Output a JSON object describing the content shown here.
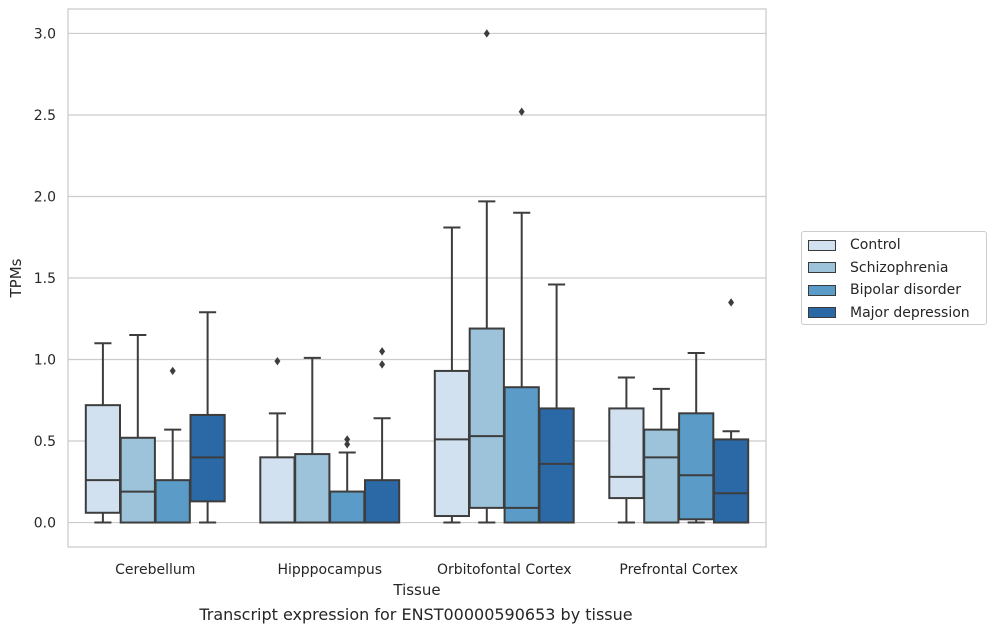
{
  "chart_data": {
    "type": "box",
    "title": "Transcript expression for ENST00000590653 by tissue",
    "xlabel": "Tissue",
    "ylabel": "TPMs",
    "ylim": [
      -0.15,
      3.15
    ],
    "yticks": [
      "0.0",
      "0.5",
      "1.0",
      "1.5",
      "2.0",
      "2.5",
      "3.0"
    ],
    "grid": true,
    "legend_position": "right",
    "categories": [
      "Cerebellum",
      "Hipppocampus",
      "Orbitofontal Cortex",
      "Prefrontal Cortex"
    ],
    "series": [
      {
        "name": "Control",
        "color": "#d1e1f0",
        "boxes": [
          {
            "whislo": 0.0,
            "q1": 0.06,
            "med": 0.26,
            "q3": 0.72,
            "whishi": 1.1,
            "fliers": []
          },
          {
            "whislo": 0.0,
            "q1": 0.0,
            "med": 0.0,
            "q3": 0.4,
            "whishi": 0.67,
            "fliers": [
              0.99
            ]
          },
          {
            "whislo": 0.0,
            "q1": 0.04,
            "med": 0.51,
            "q3": 0.93,
            "whishi": 1.81,
            "fliers": []
          },
          {
            "whislo": 0.0,
            "q1": 0.15,
            "med": 0.28,
            "q3": 0.7,
            "whishi": 0.89,
            "fliers": []
          }
        ]
      },
      {
        "name": "Schizophrenia",
        "color": "#9cc3da",
        "boxes": [
          {
            "whislo": 0.0,
            "q1": 0.0,
            "med": 0.19,
            "q3": 0.52,
            "whishi": 1.15,
            "fliers": []
          },
          {
            "whislo": 0.0,
            "q1": 0.0,
            "med": 0.0,
            "q3": 0.42,
            "whishi": 1.01,
            "fliers": []
          },
          {
            "whislo": 0.0,
            "q1": 0.09,
            "med": 0.53,
            "q3": 1.19,
            "whishi": 1.97,
            "fliers": [
              3.0
            ]
          },
          {
            "whislo": 0.0,
            "q1": 0.0,
            "med": 0.4,
            "q3": 0.57,
            "whishi": 0.82,
            "fliers": []
          }
        ]
      },
      {
        "name": "Bipolar disorder",
        "color": "#5a9cc7",
        "boxes": [
          {
            "whislo": 0.0,
            "q1": 0.0,
            "med": 0.0,
            "q3": 0.26,
            "whishi": 0.57,
            "fliers": [
              0.93
            ]
          },
          {
            "whislo": 0.0,
            "q1": 0.0,
            "med": 0.0,
            "q3": 0.19,
            "whishi": 0.43,
            "fliers": [
              0.48,
              0.51
            ]
          },
          {
            "whislo": 0.0,
            "q1": 0.0,
            "med": 0.09,
            "q3": 0.83,
            "whishi": 1.9,
            "fliers": [
              2.52
            ]
          },
          {
            "whislo": 0.0,
            "q1": 0.02,
            "med": 0.29,
            "q3": 0.67,
            "whishi": 1.04,
            "fliers": []
          }
        ]
      },
      {
        "name": "Major depression",
        "color": "#2a68a6",
        "boxes": [
          {
            "whislo": 0.0,
            "q1": 0.13,
            "med": 0.4,
            "q3": 0.66,
            "whishi": 1.29,
            "fliers": []
          },
          {
            "whislo": 0.0,
            "q1": 0.0,
            "med": 0.0,
            "q3": 0.26,
            "whishi": 0.64,
            "fliers": [
              0.97,
              1.05
            ]
          },
          {
            "whislo": 0.0,
            "q1": 0.0,
            "med": 0.36,
            "q3": 0.7,
            "whishi": 1.46,
            "fliers": []
          },
          {
            "whislo": 0.0,
            "q1": 0.0,
            "med": 0.18,
            "q3": 0.51,
            "whishi": 0.56,
            "fliers": [
              1.35
            ]
          }
        ]
      }
    ]
  }
}
